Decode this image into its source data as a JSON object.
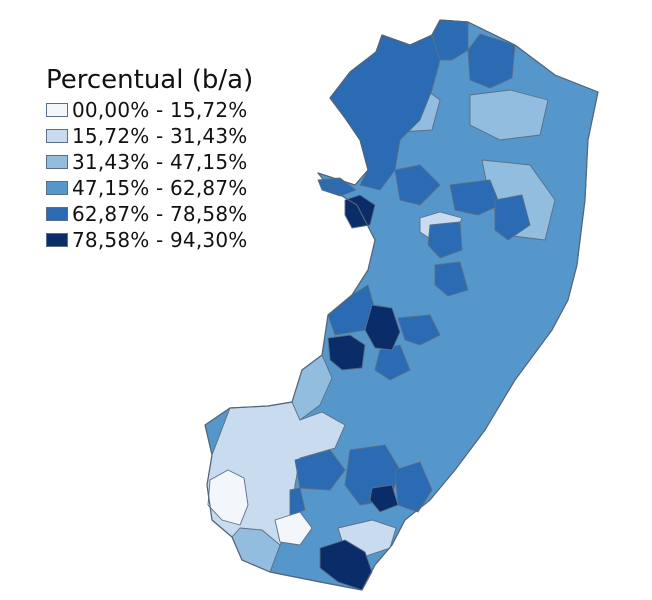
{
  "legend": {
    "title": "Percentual (b/a)",
    "classes": [
      {
        "label": "00,00% - 15,72%",
        "color": "#f3f6fb"
      },
      {
        "label": "15,72% - 31,43%",
        "color": "#c9dbef"
      },
      {
        "label": "31,43% - 47,15%",
        "color": "#92bddf"
      },
      {
        "label": "47,15% - 62,87%",
        "color": "#5596cb"
      },
      {
        "label": "62,87% - 78,58%",
        "color": "#2b6bb3"
      },
      {
        "label": "78,58% - 94,30%",
        "color": "#0a2c68"
      }
    ]
  }
}
